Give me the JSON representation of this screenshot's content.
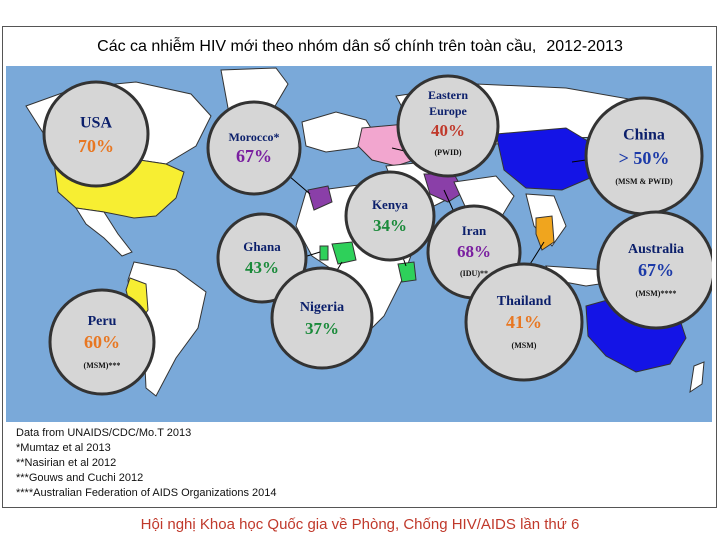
{
  "title": "Các ca nhiễm HIV mới theo nhóm dân số chính trên toàn cầu,",
  "years": "2012-2013",
  "colors": {
    "ocean": "#7aa9d9",
    "land": "#ffffff",
    "usa": "#f7ee32",
    "china_australia": "#1414e6",
    "eastern_europe": "#f2a6cf",
    "iran": "#8a3fa8",
    "africa": "#2ed05a",
    "thailand": "#f0a51e",
    "bubble": "#d6d6d6",
    "label_orange": "#e87722",
    "label_green": "#1a8a3a",
    "label_blue": "#1c3aa8",
    "label_purple": "#7a1fa0",
    "label_red": "#c0392b",
    "label_navy": "#0b1f6b"
  },
  "bubbles": [
    {
      "id": "usa",
      "name": "USA",
      "value": "70%",
      "note": ""
    },
    {
      "id": "morocco",
      "name": "Morocco*",
      "value": "67%",
      "note": ""
    },
    {
      "id": "eastern_europe",
      "name": "Eastern Europe",
      "value": "40%",
      "note": "(PWID)"
    },
    {
      "id": "china",
      "name": "China",
      "value": "> 50%",
      "note": "(MSM & PWID)"
    },
    {
      "id": "kenya",
      "name": "Kenya",
      "value": "34%",
      "note": ""
    },
    {
      "id": "ghana",
      "name": "Ghana",
      "value": "43%",
      "note": ""
    },
    {
      "id": "iran",
      "name": "Iran",
      "value": "68%",
      "note": "(IDU)**"
    },
    {
      "id": "australia",
      "name": "Australia",
      "value": "67%",
      "note": "(MSM)****"
    },
    {
      "id": "nigeria",
      "name": "Nigeria",
      "value": "37%",
      "note": ""
    },
    {
      "id": "thailand",
      "name": "Thailand",
      "value": "41%",
      "note": "(MSM)"
    },
    {
      "id": "peru",
      "name": "Peru",
      "value": "60%",
      "note": "(MSM)***"
    }
  ],
  "sources": [
    "Data from UNAIDS/CDC/Mo.T 2013",
    "*Mumtaz et al 2013",
    "**Nasirian et al 2012",
    "***Gouws and Cuchi 2012",
    "****Australian Federation of AIDS Organizations 2014"
  ],
  "footer": "Hội nghị Khoa học Quốc gia về Phòng, Chống HIV/AIDS lần thứ 6"
}
